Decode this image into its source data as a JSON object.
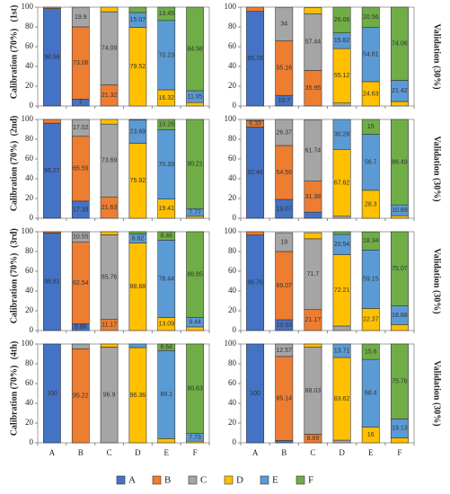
{
  "chart_data": {
    "type": "bar",
    "stacked": true,
    "categories": [
      "A",
      "B",
      "C",
      "D",
      "E",
      "F"
    ],
    "series": [
      {
        "name": "A",
        "color": "#4472c4"
      },
      {
        "name": "B",
        "color": "#ed7d31"
      },
      {
        "name": "C",
        "color": "#a5a5a5"
      },
      {
        "name": "D",
        "color": "#ffc000"
      },
      {
        "name": "E",
        "color": "#5b9bd5"
      },
      {
        "name": "F",
        "color": "#70ad47"
      }
    ],
    "ylim": [
      0,
      100
    ],
    "yticks": [
      0,
      20,
      40,
      60,
      80,
      100
    ],
    "panels": [
      {
        "ylabel": "Calibration (70%)",
        "panel_label": "(1st)",
        "values": [
          [
            98.56,
            7,
            0,
            0,
            0,
            0
          ],
          [
            1.44,
            73.06,
            21.32,
            0,
            0,
            0
          ],
          [
            0,
            19.9,
            74.09,
            0,
            0,
            0
          ],
          [
            0,
            0,
            4.59,
            79.52,
            16.32,
            3.47
          ],
          [
            0,
            0,
            0,
            15.07,
            70.23,
            11.95
          ],
          [
            0,
            0,
            0,
            5.41,
            13.45,
            84.58
          ]
        ]
      },
      {
        "ylabel": "Validation (30%)",
        "values": [
          [
            95.78,
            10.7,
            0,
            0,
            0,
            0
          ],
          [
            4.22,
            55.16,
            35.95,
            0,
            0,
            0
          ],
          [
            0,
            34,
            57.44,
            3,
            0,
            0
          ],
          [
            0,
            0,
            6.2,
            55.12,
            24.63,
            4.52
          ],
          [
            0,
            0,
            0,
            15.82,
            54.81,
            21.42
          ],
          [
            0,
            0,
            0,
            26.06,
            20.56,
            74.06
          ]
        ]
      },
      {
        "ylabel": "Calibration (70%)",
        "panel_label": "(2nd)",
        "values": [
          [
            96.27,
            17.39,
            0,
            0,
            0,
            0
          ],
          [
            3.73,
            65.59,
            21.63,
            0,
            0,
            0
          ],
          [
            0,
            17.02,
            73.69,
            0,
            0,
            0
          ],
          [
            0,
            0,
            4.68,
            75.92,
            19.41,
            2.02
          ],
          [
            0,
            0,
            0,
            23.69,
            70.33,
            7.77
          ],
          [
            0,
            0,
            0,
            0.39,
            10.26,
            90.21
          ]
        ]
      },
      {
        "ylabel": "Validation (30%)",
        "values": [
          [
            92.46,
            19.07,
            6.2,
            0,
            0,
            0
          ],
          [
            6.33,
            54.56,
            31.38,
            0,
            0,
            0
          ],
          [
            1.21,
            26.37,
            61.74,
            2.1,
            0,
            0
          ],
          [
            0,
            0,
            0,
            67.62,
            28.3,
            2.62
          ],
          [
            0,
            0,
            0,
            30.28,
            56.7,
            10.89
          ],
          [
            0,
            0,
            0,
            0,
            15,
            86.49
          ]
        ]
      },
      {
        "ylabel": "Calibration (70%)",
        "panel_label": "(3rd)",
        "values": [
          [
            98.81,
            6.86,
            0,
            0,
            0,
            0
          ],
          [
            1.19,
            82.54,
            11.17,
            0,
            0,
            0
          ],
          [
            0,
            10.55,
            85.76,
            0,
            0,
            0
          ],
          [
            0,
            0,
            3.07,
            88.68,
            13.09,
            3.71
          ],
          [
            0,
            0,
            0,
            8.92,
            78.44,
            9.44
          ],
          [
            0,
            0,
            0,
            2.4,
            8.46,
            86.85
          ]
        ]
      },
      {
        "ylabel": "Validation (30%)",
        "values": [
          [
            96.76,
            10.93,
            0,
            0,
            0,
            0
          ],
          [
            3.24,
            69.07,
            21.17,
            0,
            0,
            0
          ],
          [
            0,
            19,
            71.7,
            4.59,
            0,
            0
          ],
          [
            0,
            0,
            6.13,
            72.21,
            22.37,
            6.05
          ],
          [
            0,
            0,
            0,
            20.54,
            59.15,
            18.88
          ],
          [
            0,
            0,
            0,
            2.66,
            18.34,
            75.07
          ]
        ]
      },
      {
        "ylabel": "Calibration (70%)",
        "panel_label": "(4th)",
        "values": [
          [
            100,
            0,
            0,
            0,
            0,
            0
          ],
          [
            0,
            95.22,
            0,
            0,
            0,
            0
          ],
          [
            0,
            4.78,
            96.9,
            0,
            0,
            0
          ],
          [
            0,
            0,
            3.1,
            96.36,
            4.26,
            1.64
          ],
          [
            0,
            0,
            0,
            3.64,
            89.1,
            7.73
          ],
          [
            0,
            0,
            0,
            0,
            6.64,
            90.63
          ]
        ]
      },
      {
        "ylabel": "Validation (30%)",
        "values": [
          [
            100,
            2.29,
            0,
            0,
            0,
            0
          ],
          [
            0,
            85.14,
            8.69,
            0,
            0,
            0
          ],
          [
            0,
            12.57,
            88.03,
            2.67,
            0,
            0
          ],
          [
            0,
            0,
            3.28,
            83.62,
            16,
            5.11
          ],
          [
            0,
            0,
            0,
            13.71,
            68.4,
            19.13
          ],
          [
            0,
            0,
            0,
            0,
            15.6,
            75.76
          ]
        ]
      }
    ]
  }
}
